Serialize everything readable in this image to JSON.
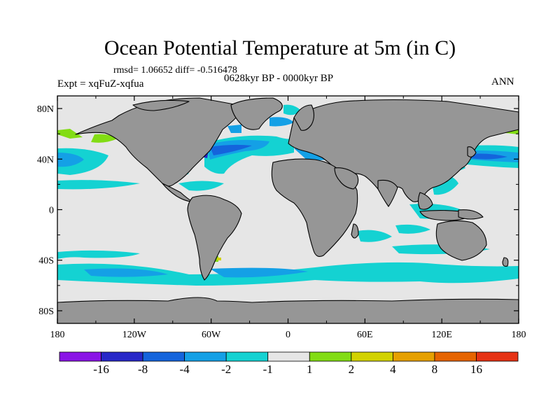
{
  "title": "Ocean Potential Temperature at 5m (in C)",
  "stats_text": "rmsd= 1.06652 diff= -0.516478",
  "experiment_text": "Expt = xqFuZ-xqfua",
  "period_text": "0628kyr BP - 0000kyr BP",
  "season_text": "ANN",
  "map": {
    "land_color": "#969696",
    "neutral_color": "#e6e6e6",
    "y_ticks": [
      "80N",
      "40N",
      "0",
      "40S",
      "80S"
    ],
    "x_ticks": [
      "180",
      "120W",
      "60W",
      "0",
      "60E",
      "120E",
      "180"
    ]
  },
  "colorbar": {
    "colors": [
      "#8a14e6",
      "#2828c8",
      "#1464dc",
      "#14a0e6",
      "#14d2d2",
      "#e6e6e6",
      "#82dc14",
      "#d2d200",
      "#e6a000",
      "#e66400",
      "#e63214"
    ],
    "labels": [
      "-16",
      "-8",
      "-4",
      "-2",
      "-1",
      "1",
      "2",
      "4",
      "8",
      "16"
    ]
  }
}
